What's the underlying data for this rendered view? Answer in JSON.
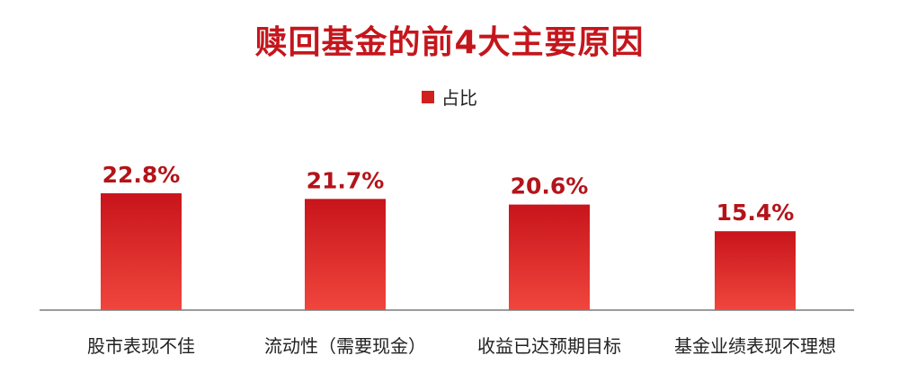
{
  "chart_data": {
    "type": "bar",
    "title": "赎回基金的前4大主要原因",
    "categories": [
      "股市表现不佳",
      "流动性（需要现金）",
      "收益已达预期目标",
      "基金业绩表现不理想"
    ],
    "series": [
      {
        "name": "占比",
        "values": [
          22.8,
          21.7,
          20.6,
          15.4
        ],
        "data_labels": [
          "22.8%",
          "21.7%",
          "20.6%",
          "15.4%"
        ]
      }
    ],
    "xlabel": "",
    "ylabel": "",
    "ylim": [
      0,
      28
    ],
    "grid": false,
    "legend_position": "top-center"
  },
  "colors": {
    "title": "#c4161c",
    "bar_top": "#c8141b",
    "bar_bottom": "#f0463d",
    "data_label": "#b3141a",
    "baseline": "#7a7a7a",
    "legend_swatch": "#d2201f"
  }
}
